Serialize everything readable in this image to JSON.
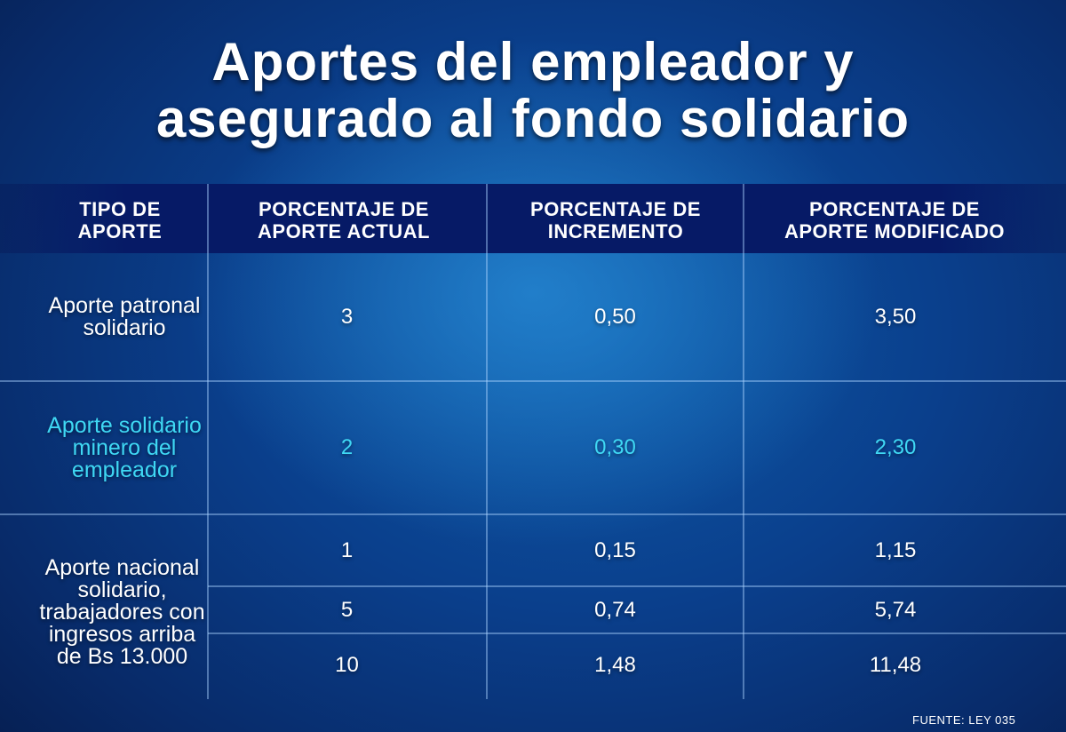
{
  "title": {
    "line1": "Aportes del empleador y",
    "line2": "asegurado al fondo solidario"
  },
  "columns": [
    "TIPO DE APORTE",
    "PORCENTAJE DE APORTE ACTUAL",
    "PORCENTAJE DE INCREMENTO",
    "PORCENTAJE DE APORTE MODIFICADO"
  ],
  "rows": [
    {
      "tipo": "Aporte patronal solidario",
      "actual": [
        "3"
      ],
      "incremento": [
        "0,50"
      ],
      "modificado": [
        "3,50"
      ],
      "color": "#ffffff"
    },
    {
      "tipo": "Aporte solidario minero del empleador",
      "actual": [
        "2"
      ],
      "incremento": [
        "0,30"
      ],
      "modificado": [
        "2,30"
      ],
      "color": "#3fd8f4"
    },
    {
      "tipo": "Aporte nacional solidario, trabajadores con ingresos arriba de Bs 13.000",
      "actual": [
        "1",
        "5",
        "10"
      ],
      "incremento": [
        "0,15",
        "0,74",
        "1,48"
      ],
      "modificado": [
        "1,15",
        "5,74",
        "11,48"
      ],
      "color": "#ffffff"
    }
  ],
  "source": "FUENTE: LEY 035",
  "colors": {
    "background": "#0a3f8c",
    "header_band": "#061a66",
    "highlight_text": "#3fd8f4"
  }
}
